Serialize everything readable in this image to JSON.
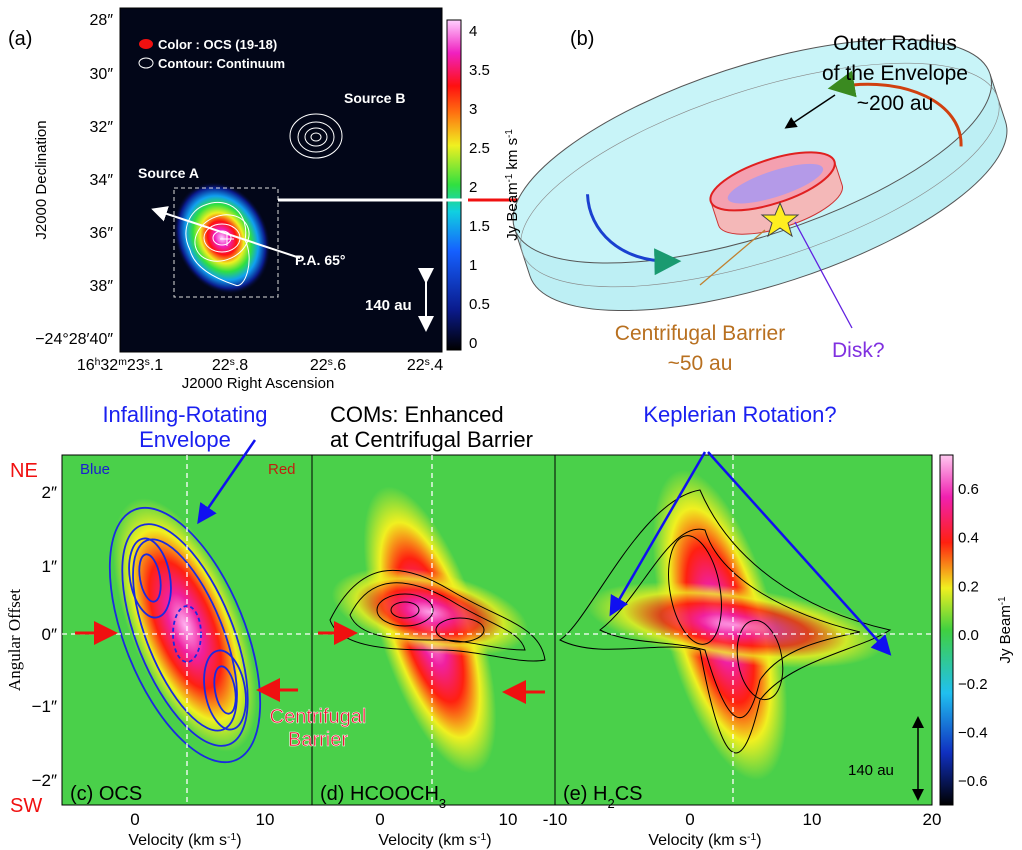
{
  "panel_a": {
    "label": "(a)",
    "legend": {
      "color": "Color    : OCS (19-18)",
      "contour": "Contour: Continuum"
    },
    "source_a": "Source A",
    "source_b": "Source B",
    "position_angle": "P.A. 65°",
    "scale_bar": "140 au",
    "y_axis": {
      "title": "J2000 Declination",
      "ticks": [
        "28″",
        "30″",
        "32″",
        "34″",
        "36″",
        "38″",
        "−24°28′40″"
      ]
    },
    "x_axis": {
      "title": "J2000 Right Ascension",
      "ticks": [
        [
          "16",
          "h",
          "32",
          "m",
          "23",
          "s",
          ".1"
        ],
        [
          "22",
          "s",
          ".8"
        ],
        [
          "22",
          "s",
          ".6"
        ],
        [
          "22",
          "s",
          ".4"
        ]
      ]
    },
    "colorbar": {
      "title": [
        "Jy Beam",
        "-1",
        " km s",
        "-1"
      ],
      "ticks": [
        "0",
        "0.5",
        "1",
        "1.5",
        "2",
        "2.5",
        "3",
        "3.5",
        "4"
      ]
    }
  },
  "panel_b": {
    "label": "(b)",
    "outer": [
      "Outer Radius",
      "of the Envelope",
      "~200 au"
    ],
    "barrier": [
      "Centrifugal Barrier",
      "~50 au"
    ],
    "disk": "Disk?"
  },
  "panel_pv": {
    "annotations": {
      "envelope": [
        "Infalling-Rotating",
        "Envelope"
      ],
      "coms": [
        "COMs: Enhanced",
        "at Centrifugal Barrier"
      ],
      "keplerian": "Keplerian Rotation?",
      "barrier": [
        "Centrifugal",
        "Barrier"
      ],
      "ne": "NE",
      "sw": "SW",
      "blue": "Blue",
      "red": "Red",
      "scale_bar": "140 au"
    },
    "y_axis": {
      "title": "Angular Offset",
      "ticks": [
        "2″",
        "1″",
        "0″",
        "−1″",
        "−2″"
      ]
    },
    "panels": [
      {
        "label": [
          "(c) OCS"
        ],
        "x_ticks": [
          "0",
          "10"
        ],
        "x_title": [
          "Velocity (km s",
          "-1",
          ")"
        ]
      },
      {
        "label": [
          "(d) HCOOCH",
          "3"
        ],
        "x_ticks": [
          "0",
          "10"
        ],
        "x_title": [
          "Velocity (km s",
          "-1",
          ")"
        ]
      },
      {
        "label": [
          "(e) H",
          "2",
          "CS"
        ],
        "x_ticks": [
          "-10",
          "0",
          "10",
          "20"
        ],
        "x_title": [
          "Velocity (km s",
          "-1",
          ")"
        ]
      }
    ],
    "colorbar": {
      "title": [
        "Jy Beam",
        "-1"
      ],
      "ticks": [
        "0.6",
        "0.4",
        "0.2",
        "0.0",
        "−0.2",
        "−0.4",
        "−0.6"
      ]
    }
  }
}
